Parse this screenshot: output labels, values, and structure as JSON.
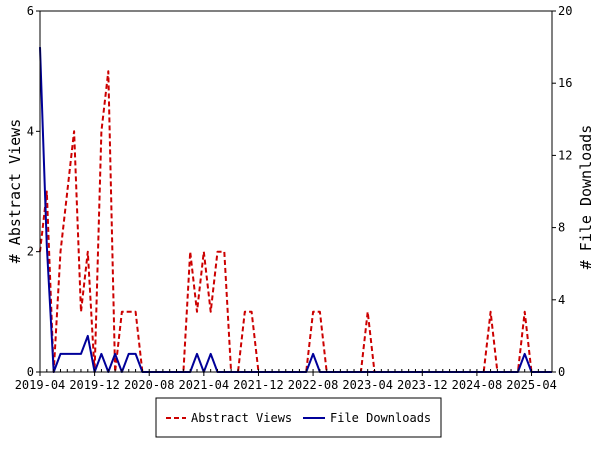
{
  "chart_data": {
    "type": "line",
    "ylabel": "# Abstract Views",
    "y2label": "# File Downloads",
    "ylim": [
      0,
      6
    ],
    "y2lim": [
      0,
      20
    ],
    "yticks": [
      "0",
      "2",
      "4",
      "6"
    ],
    "y2ticks": [
      "0",
      "4",
      "8",
      "12",
      "16",
      "20"
    ],
    "xticks": [
      "2019-04",
      "2019-12",
      "2020-08",
      "2021-04",
      "2021-12",
      "2022-08",
      "2023-04",
      "2023-12",
      "2024-08",
      "2025-04"
    ],
    "x_start": "2019-04",
    "x_end": "2025-07",
    "legend_position": "bottom",
    "series": [
      {
        "name": "Abstract Views",
        "axis": "left",
        "color": "#cc0000",
        "dash": "dashed",
        "points": [
          [
            "2019-04",
            2
          ],
          [
            "2019-05",
            3
          ],
          [
            "2019-06",
            0
          ],
          [
            "2019-07",
            2
          ],
          [
            "2019-08",
            3
          ],
          [
            "2019-09",
            4
          ],
          [
            "2019-10",
            1
          ],
          [
            "2019-11",
            2
          ],
          [
            "2019-12",
            0
          ],
          [
            "2020-01",
            4
          ],
          [
            "2020-02",
            5
          ],
          [
            "2020-03",
            0
          ],
          [
            "2020-04",
            1
          ],
          [
            "2020-05",
            1
          ],
          [
            "2020-06",
            1
          ],
          [
            "2020-07",
            0
          ],
          [
            "2020-08",
            0
          ],
          [
            "2020-09",
            0
          ],
          [
            "2020-10",
            0
          ],
          [
            "2020-11",
            0
          ],
          [
            "2020-12",
            0
          ],
          [
            "2021-01",
            0
          ],
          [
            "2021-02",
            2
          ],
          [
            "2021-03",
            1
          ],
          [
            "2021-04",
            2
          ],
          [
            "2021-05",
            1
          ],
          [
            "2021-06",
            2
          ],
          [
            "2021-07",
            2
          ],
          [
            "2021-08",
            0
          ],
          [
            "2021-09",
            0
          ],
          [
            "2021-10",
            1
          ],
          [
            "2021-11",
            1
          ],
          [
            "2021-12",
            0
          ],
          [
            "2022-01",
            0
          ],
          [
            "2022-02",
            0
          ],
          [
            "2022-03",
            0
          ],
          [
            "2022-04",
            0
          ],
          [
            "2022-05",
            0
          ],
          [
            "2022-06",
            0
          ],
          [
            "2022-07",
            0
          ],
          [
            "2022-08",
            1
          ],
          [
            "2022-09",
            1
          ],
          [
            "2022-10",
            0
          ],
          [
            "2022-11",
            0
          ],
          [
            "2022-12",
            0
          ],
          [
            "2023-01",
            0
          ],
          [
            "2023-02",
            0
          ],
          [
            "2023-03",
            0
          ],
          [
            "2023-04",
            1
          ],
          [
            "2023-05",
            0
          ],
          [
            "2023-06",
            0
          ],
          [
            "2023-07",
            0
          ],
          [
            "2023-08",
            0
          ],
          [
            "2023-09",
            0
          ],
          [
            "2023-10",
            0
          ],
          [
            "2023-11",
            0
          ],
          [
            "2023-12",
            0
          ],
          [
            "2024-01",
            0
          ],
          [
            "2024-02",
            0
          ],
          [
            "2024-03",
            0
          ],
          [
            "2024-04",
            0
          ],
          [
            "2024-05",
            0
          ],
          [
            "2024-06",
            0
          ],
          [
            "2024-07",
            0
          ],
          [
            "2024-08",
            0
          ],
          [
            "2024-09",
            0
          ],
          [
            "2024-10",
            1
          ],
          [
            "2024-11",
            0
          ],
          [
            "2024-12",
            0
          ],
          [
            "2025-01",
            0
          ],
          [
            "2025-02",
            0
          ],
          [
            "2025-03",
            1
          ],
          [
            "2025-04",
            0
          ],
          [
            "2025-05",
            0
          ],
          [
            "2025-06",
            0
          ],
          [
            "2025-07",
            0
          ]
        ]
      },
      {
        "name": "File Downloads",
        "axis": "right",
        "color": "#000099",
        "dash": "solid",
        "points": [
          [
            "2019-04",
            18
          ],
          [
            "2019-05",
            7
          ],
          [
            "2019-06",
            0
          ],
          [
            "2019-07",
            1
          ],
          [
            "2019-08",
            1
          ],
          [
            "2019-09",
            1
          ],
          [
            "2019-10",
            1
          ],
          [
            "2019-11",
            2
          ],
          [
            "2019-12",
            0
          ],
          [
            "2020-01",
            1
          ],
          [
            "2020-02",
            0
          ],
          [
            "2020-03",
            1
          ],
          [
            "2020-04",
            0
          ],
          [
            "2020-05",
            1
          ],
          [
            "2020-06",
            1
          ],
          [
            "2020-07",
            0
          ],
          [
            "2020-08",
            0
          ],
          [
            "2020-09",
            0
          ],
          [
            "2020-10",
            0
          ],
          [
            "2020-11",
            0
          ],
          [
            "2020-12",
            0
          ],
          [
            "2021-01",
            0
          ],
          [
            "2021-02",
            0
          ],
          [
            "2021-03",
            1
          ],
          [
            "2021-04",
            0
          ],
          [
            "2021-05",
            1
          ],
          [
            "2021-06",
            0
          ],
          [
            "2021-07",
            0
          ],
          [
            "2021-08",
            0
          ],
          [
            "2021-09",
            0
          ],
          [
            "2021-10",
            0
          ],
          [
            "2021-11",
            0
          ],
          [
            "2021-12",
            0
          ],
          [
            "2022-01",
            0
          ],
          [
            "2022-02",
            0
          ],
          [
            "2022-03",
            0
          ],
          [
            "2022-04",
            0
          ],
          [
            "2022-05",
            0
          ],
          [
            "2022-06",
            0
          ],
          [
            "2022-07",
            0
          ],
          [
            "2022-08",
            1
          ],
          [
            "2022-09",
            0
          ],
          [
            "2022-10",
            0
          ],
          [
            "2022-11",
            0
          ],
          [
            "2022-12",
            0
          ],
          [
            "2023-01",
            0
          ],
          [
            "2023-02",
            0
          ],
          [
            "2023-03",
            0
          ],
          [
            "2023-04",
            0
          ],
          [
            "2023-05",
            0
          ],
          [
            "2023-06",
            0
          ],
          [
            "2023-07",
            0
          ],
          [
            "2023-08",
            0
          ],
          [
            "2023-09",
            0
          ],
          [
            "2023-10",
            0
          ],
          [
            "2023-11",
            0
          ],
          [
            "2023-12",
            0
          ],
          [
            "2024-01",
            0
          ],
          [
            "2024-02",
            0
          ],
          [
            "2024-03",
            0
          ],
          [
            "2024-04",
            0
          ],
          [
            "2024-05",
            0
          ],
          [
            "2024-06",
            0
          ],
          [
            "2024-07",
            0
          ],
          [
            "2024-08",
            0
          ],
          [
            "2024-09",
            0
          ],
          [
            "2024-10",
            0
          ],
          [
            "2024-11",
            0
          ],
          [
            "2024-12",
            0
          ],
          [
            "2025-01",
            0
          ],
          [
            "2025-02",
            0
          ],
          [
            "2025-03",
            1
          ],
          [
            "2025-04",
            0
          ],
          [
            "2025-05",
            0
          ],
          [
            "2025-06",
            0
          ],
          [
            "2025-07",
            0
          ]
        ]
      }
    ]
  }
}
